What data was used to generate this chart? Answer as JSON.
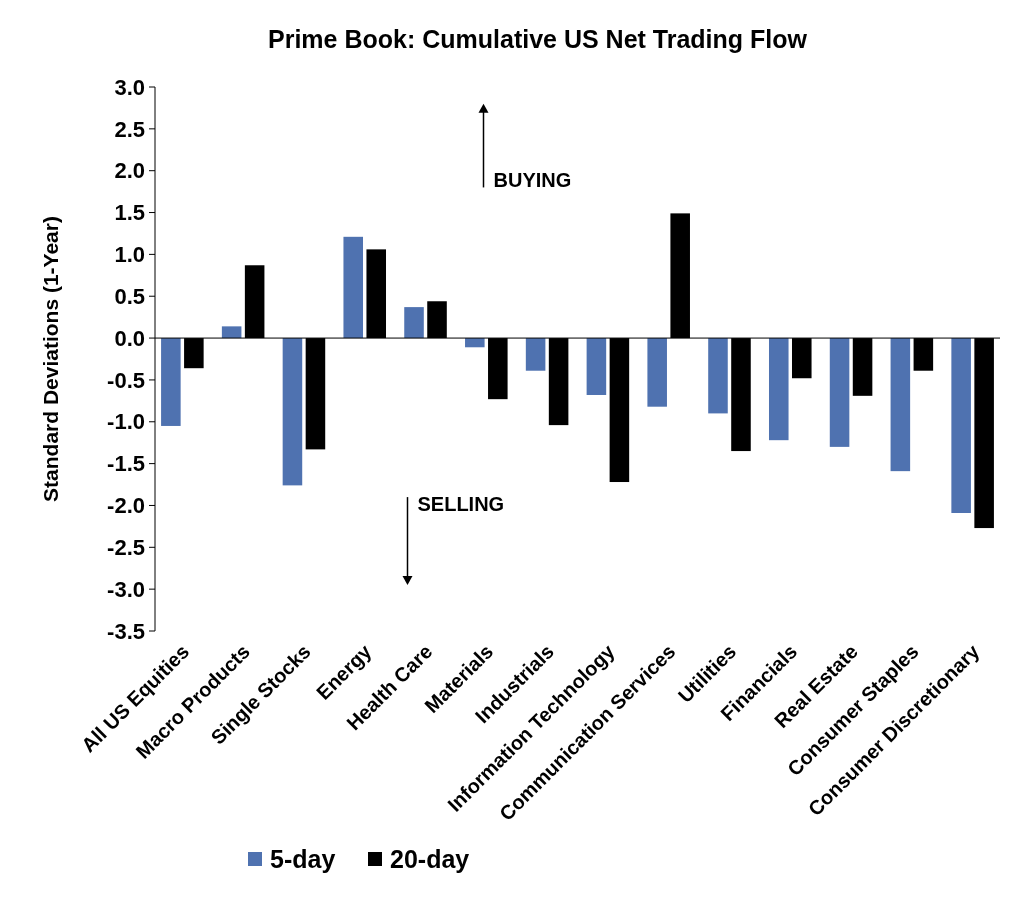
{
  "chart_data": {
    "type": "bar",
    "title": "Prime Book: Cumulative US Net Trading Flow",
    "ylabel": "Standard Deviations (1-Year)",
    "categories": [
      "All US Equities",
      "Macro Products",
      "Single Stocks",
      "Energy",
      "Health Care",
      "Materials",
      "Industrials",
      "Information Technology",
      "Communication Services",
      "Utilities",
      "Financials",
      "Real Estate",
      "Consumer Staples",
      "Consumer Discretionary"
    ],
    "series": [
      {
        "name": "5-day",
        "color": "#4f72b0",
        "values": [
          -1.05,
          0.14,
          -1.76,
          1.21,
          0.37,
          -0.11,
          -0.39,
          -0.68,
          -0.82,
          -0.9,
          -1.22,
          -1.3,
          -1.59,
          -2.09
        ]
      },
      {
        "name": "20-day",
        "color": "#000000",
        "values": [
          -0.36,
          0.87,
          -1.33,
          1.06,
          0.44,
          -0.73,
          -1.04,
          -1.72,
          1.49,
          -1.35,
          -0.48,
          -0.69,
          -0.39,
          -2.27
        ]
      }
    ],
    "ylim": [
      -3.5,
      3.0
    ],
    "yticks": [
      {
        "value": 3,
        "label": "3.0"
      },
      {
        "value": 2.5,
        "label": "2.5"
      },
      {
        "value": 2,
        "label": "2.0"
      },
      {
        "value": 1.5,
        "label": "1.5"
      },
      {
        "value": 1,
        "label": "1.0"
      },
      {
        "value": 0.5,
        "label": "0.5"
      },
      {
        "value": 0,
        "label": "0.0"
      },
      {
        "value": -0.5,
        "label": "-0.5"
      },
      {
        "value": -1,
        "label": "-1.0"
      },
      {
        "value": -1.5,
        "label": "-1.5"
      },
      {
        "value": -2,
        "label": "-2.0"
      },
      {
        "value": -2.5,
        "label": "-2.5"
      },
      {
        "value": -3,
        "label": "-3.0"
      },
      {
        "value": -3.5,
        "label": "-3.5"
      }
    ],
    "annotations": [
      "BUYING",
      "SELLING"
    ],
    "legend": "bottom"
  }
}
